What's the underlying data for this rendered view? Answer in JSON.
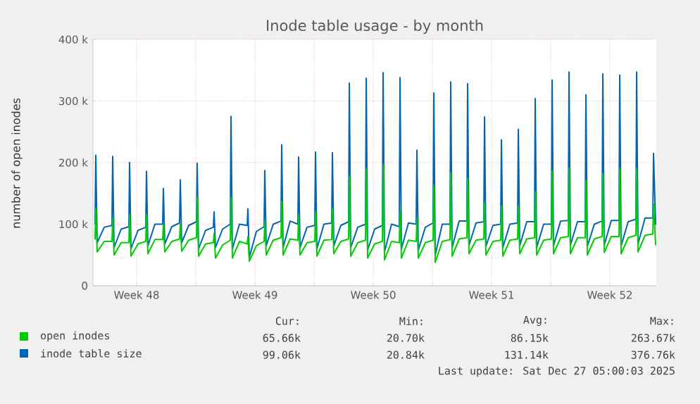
{
  "chart_data": {
    "type": "line",
    "title": "Inode table usage - by month",
    "ylabel": "number of open inodes",
    "xlim": [
      "2025-11-24T22:00",
      "2025-12-28T06:00"
    ],
    "xticks": [
      {
        "value": "2025-11-27T12:00",
        "label": "Week 48"
      },
      {
        "value": "2025-12-04T12:00",
        "label": "Week 49"
      },
      {
        "value": "2025-12-11T12:00",
        "label": "Week 50"
      },
      {
        "value": "2025-12-18T12:00",
        "label": "Week 51"
      },
      {
        "value": "2025-12-25T12:00",
        "label": "Week 52"
      },
      {
        "value": "2025-12-01T00:00",
        "label": null
      },
      {
        "value": "2025-12-08T00:00",
        "label": null
      },
      {
        "value": "2025-12-15T00:00",
        "label": null
      },
      {
        "value": "2025-12-22T00:00",
        "label": null
      }
    ],
    "ylim": [
      0,
      400000
    ],
    "yticks": [
      {
        "value": 0,
        "label": "0"
      },
      {
        "value": 100000,
        "label": "100 k"
      },
      {
        "value": 200000,
        "label": "200 k"
      },
      {
        "value": 300000,
        "label": "300 k"
      },
      {
        "value": 400000,
        "label": "400 k"
      }
    ],
    "grid": true,
    "legend": "bottom",
    "x": [
      "2025-11-25T01:00",
      "2025-11-25T02:00",
      "2025-11-25T04:00",
      "2025-11-25T14:00",
      "2025-11-26T01:00",
      "2025-11-26T02:00",
      "2025-11-26T04:00",
      "2025-11-26T14:00",
      "2025-11-27T01:00",
      "2025-11-27T02:00",
      "2025-11-27T04:00",
      "2025-11-27T14:00",
      "2025-11-28T01:00",
      "2025-11-28T02:00",
      "2025-11-28T04:00",
      "2025-11-28T14:00",
      "2025-11-29T01:00",
      "2025-11-29T02:00",
      "2025-11-29T04:00",
      "2025-11-29T14:00",
      "2025-11-30T01:00",
      "2025-11-30T02:00",
      "2025-11-30T04:00",
      "2025-11-30T14:00",
      "2025-12-01T01:00",
      "2025-12-01T02:00",
      "2025-12-01T04:00",
      "2025-12-01T14:00",
      "2025-12-02T01:00",
      "2025-12-02T02:00",
      "2025-12-02T04:00",
      "2025-12-02T14:00",
      "2025-12-03T01:00",
      "2025-12-03T02:00",
      "2025-12-03T04:00",
      "2025-12-03T14:00",
      "2025-12-04T01:00",
      "2025-12-04T02:00",
      "2025-12-04T04:00",
      "2025-12-04T14:00",
      "2025-12-05T01:00",
      "2025-12-05T02:00",
      "2025-12-05T04:00",
      "2025-12-05T14:00",
      "2025-12-06T01:00",
      "2025-12-06T02:00",
      "2025-12-06T04:00",
      "2025-12-06T14:00",
      "2025-12-07T01:00",
      "2025-12-07T02:00",
      "2025-12-07T04:00",
      "2025-12-07T14:00",
      "2025-12-08T01:00",
      "2025-12-08T02:00",
      "2025-12-08T04:00",
      "2025-12-08T14:00",
      "2025-12-09T01:00",
      "2025-12-09T02:00",
      "2025-12-09T04:00",
      "2025-12-09T14:00",
      "2025-12-10T01:00",
      "2025-12-10T02:00",
      "2025-12-10T04:00",
      "2025-12-10T14:00",
      "2025-12-11T01:00",
      "2025-12-11T02:00",
      "2025-12-11T04:00",
      "2025-12-11T14:00",
      "2025-12-12T01:00",
      "2025-12-12T02:00",
      "2025-12-12T04:00",
      "2025-12-12T14:00",
      "2025-12-13T01:00",
      "2025-12-13T02:00",
      "2025-12-13T04:00",
      "2025-12-13T14:00",
      "2025-12-14T01:00",
      "2025-12-14T02:00",
      "2025-12-14T04:00",
      "2025-12-14T14:00",
      "2025-12-15T01:00",
      "2025-12-15T02:00",
      "2025-12-15T04:00",
      "2025-12-15T14:00",
      "2025-12-16T01:00",
      "2025-12-16T02:00",
      "2025-12-16T04:00",
      "2025-12-16T14:00",
      "2025-12-17T01:00",
      "2025-12-17T02:00",
      "2025-12-17T04:00",
      "2025-12-17T14:00",
      "2025-12-18T01:00",
      "2025-12-18T02:00",
      "2025-12-18T04:00",
      "2025-12-18T14:00",
      "2025-12-19T01:00",
      "2025-12-19T02:00",
      "2025-12-19T04:00",
      "2025-12-19T14:00",
      "2025-12-20T01:00",
      "2025-12-20T02:00",
      "2025-12-20T04:00",
      "2025-12-20T14:00",
      "2025-12-21T01:00",
      "2025-12-21T02:00",
      "2025-12-21T04:00",
      "2025-12-21T14:00",
      "2025-12-22T01:00",
      "2025-12-22T02:00",
      "2025-12-22T04:00",
      "2025-12-22T14:00",
      "2025-12-23T01:00",
      "2025-12-23T02:00",
      "2025-12-23T04:00",
      "2025-12-23T14:00",
      "2025-12-24T01:00",
      "2025-12-24T02:00",
      "2025-12-24T04:00",
      "2025-12-24T14:00",
      "2025-12-25T01:00",
      "2025-12-25T02:00",
      "2025-12-25T04:00",
      "2025-12-25T14:00",
      "2025-12-26T01:00",
      "2025-12-26T02:00",
      "2025-12-26T04:00",
      "2025-12-26T14:00",
      "2025-12-27T01:00",
      "2025-12-27T02:00",
      "2025-12-27T04:00",
      "2025-12-27T14:00",
      "2025-12-28T01:00",
      "2025-12-28T02:00",
      "2025-12-28T05:00"
    ],
    "series": [
      {
        "name": "open inodes",
        "color": "#00cc00",
        "values": [
          75000,
          126000,
          55000,
          72000,
          72000,
          110000,
          50000,
          70000,
          70000,
          115000,
          48000,
          68000,
          72000,
          115000,
          52000,
          75000,
          75000,
          100000,
          55000,
          72000,
          76000,
          100000,
          56000,
          74000,
          78000,
          144000,
          48000,
          68000,
          70000,
          85000,
          45000,
          66000,
          74000,
          144000,
          45000,
          72000,
          68000,
          80000,
          40000,
          65000,
          72000,
          105000,
          50000,
          74000,
          78000,
          137000,
          50000,
          76000,
          74000,
          115000,
          50000,
          70000,
          72000,
          120000,
          48000,
          74000,
          75000,
          125000,
          52000,
          72000,
          76000,
          178000,
          48000,
          70000,
          74000,
          190000,
          45000,
          68000,
          72000,
          197000,
          42000,
          72000,
          70000,
          121000,
          45000,
          74000,
          72000,
          110000,
          45000,
          70000,
          74000,
          163000,
          38000,
          72000,
          75000,
          183000,
          48000,
          76000,
          78000,
          174000,
          52000,
          74000,
          76000,
          135000,
          50000,
          72000,
          74000,
          129000,
          48000,
          74000,
          76000,
          129000,
          52000,
          76000,
          78000,
          152000,
          50000,
          74000,
          76000,
          186000,
          52000,
          78000,
          80000,
          191000,
          52000,
          78000,
          78000,
          171000,
          50000,
          76000,
          80000,
          182000,
          54000,
          80000,
          80000,
          190000,
          52000,
          78000,
          82000,
          190000,
          55000,
          82000,
          84000,
          133000,
          66000
        ]
      },
      {
        "name": "inode table size",
        "color": "#0066b3",
        "values": [
          100000,
          212000,
          70000,
          95000,
          98000,
          210000,
          62000,
          92000,
          96000,
          200000,
          60000,
          90000,
          95000,
          186000,
          65000,
          100000,
          100000,
          158000,
          68000,
          96000,
          102000,
          172000,
          70000,
          98000,
          104000,
          199000,
          60000,
          90000,
          95000,
          120000,
          62000,
          92000,
          100000,
          275000,
          60000,
          100000,
          98000,
          125000,
          46000,
          88000,
          96000,
          187000,
          65000,
          100000,
          105000,
          229000,
          62000,
          105000,
          100000,
          209000,
          62000,
          95000,
          98000,
          217000,
          60000,
          100000,
          102000,
          216000,
          65000,
          98000,
          104000,
          329000,
          62000,
          95000,
          100000,
          337000,
          58000,
          92000,
          98000,
          346000,
          55000,
          100000,
          96000,
          338000,
          60000,
          102000,
          100000,
          220000,
          58000,
          95000,
          102000,
          313000,
          50000,
          100000,
          100000,
          331000,
          62000,
          105000,
          105000,
          328000,
          66000,
          102000,
          104000,
          274000,
          64000,
          98000,
          100000,
          237000,
          62000,
          100000,
          102000,
          254000,
          65000,
          104000,
          104000,
          304000,
          62000,
          100000,
          100000,
          334000,
          65000,
          105000,
          106000,
          347000,
          66000,
          104000,
          104000,
          310000,
          64000,
          100000,
          105000,
          344000,
          66000,
          106000,
          106000,
          342000,
          65000,
          104000,
          108000,
          347000,
          68000,
          110000,
          110000,
          215000,
          99000
        ]
      }
    ],
    "annotations": [
      "Cur:",
      "Min:",
      "Avg:",
      "Max:",
      "65.66k",
      "20.70k",
      "86.15k",
      "263.67k",
      "99.06k",
      "20.84k",
      "131.14k",
      "376.76k",
      "Last update: Sat Dec 27 05:00:03 2025"
    ]
  }
}
